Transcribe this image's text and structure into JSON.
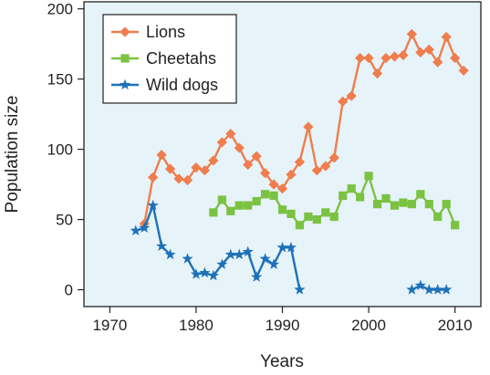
{
  "chart_data": {
    "type": "line",
    "title": "",
    "xlabel": "Years",
    "ylabel": "Population size",
    "xlim": [
      1967,
      2013
    ],
    "ylim": [
      -12,
      205
    ],
    "xticks": [
      1970,
      1980,
      1990,
      2000,
      2010
    ],
    "yticks": [
      0,
      50,
      100,
      150,
      200
    ],
    "grid": false,
    "legend_position": "top-left",
    "plot_background": "#e6f3f9",
    "series": [
      {
        "name": "Lions",
        "color": "#ef7d4d",
        "marker": "diamond",
        "segments": [
          {
            "x": [
              1974,
              1975,
              1976,
              1977,
              1978,
              1979,
              1980,
              1981,
              1982,
              1983,
              1984,
              1985,
              1986,
              1987,
              1988,
              1989,
              1990,
              1991,
              1992,
              1993,
              1994,
              1995,
              1996,
              1997,
              1998,
              1999,
              2000,
              2001,
              2002,
              2003,
              2004,
              2005,
              2006,
              2007,
              2008,
              2009,
              2010,
              2011
            ],
            "y": [
              47,
              80,
              96,
              86,
              79,
              78,
              87,
              85,
              92,
              105,
              111,
              101,
              89,
              95,
              83,
              75,
              72,
              82,
              91,
              116,
              85,
              88,
              94,
              134,
              138,
              165,
              165,
              154,
              165,
              166,
              167,
              182,
              169,
              171,
              162,
              180,
              165,
              156
            ]
          }
        ]
      },
      {
        "name": "Cheetahs",
        "color": "#7cc242",
        "marker": "square",
        "segments": [
          {
            "x": [
              1982,
              1983,
              1984,
              1985,
              1986,
              1987,
              1988,
              1989,
              1990,
              1991,
              1992,
              1993,
              1994,
              1995,
              1996,
              1997,
              1998,
              1999,
              2000,
              2001,
              2002,
              2003,
              2004,
              2005,
              2006,
              2007,
              2008,
              2009,
              2010
            ],
            "y": [
              55,
              64,
              56,
              60,
              60,
              63,
              68,
              67,
              57,
              54,
              46,
              52,
              50,
              55,
              52,
              67,
              72,
              66,
              81,
              61,
              65,
              60,
              62,
              61,
              68,
              61,
              52,
              61,
              46
            ]
          }
        ]
      },
      {
        "name": "Wild dogs",
        "color": "#1d71b8",
        "marker": "star",
        "segments": [
          {
            "x": [
              1973,
              1974,
              1975,
              1976,
              1977
            ],
            "y": [
              42,
              44,
              60,
              31,
              25
            ]
          },
          {
            "x": [
              1979,
              1980,
              1981,
              1982,
              1983,
              1984,
              1985,
              1986,
              1987,
              1988,
              1989,
              1990,
              1991,
              1992
            ],
            "y": [
              22,
              11,
              12,
              10,
              18,
              25,
              25,
              27,
              9,
              22,
              18,
              30,
              30,
              0
            ]
          },
          {
            "x": [
              2005,
              2006,
              2007,
              2008,
              2009
            ],
            "y": [
              0,
              3,
              0,
              0,
              0
            ]
          }
        ]
      }
    ]
  }
}
